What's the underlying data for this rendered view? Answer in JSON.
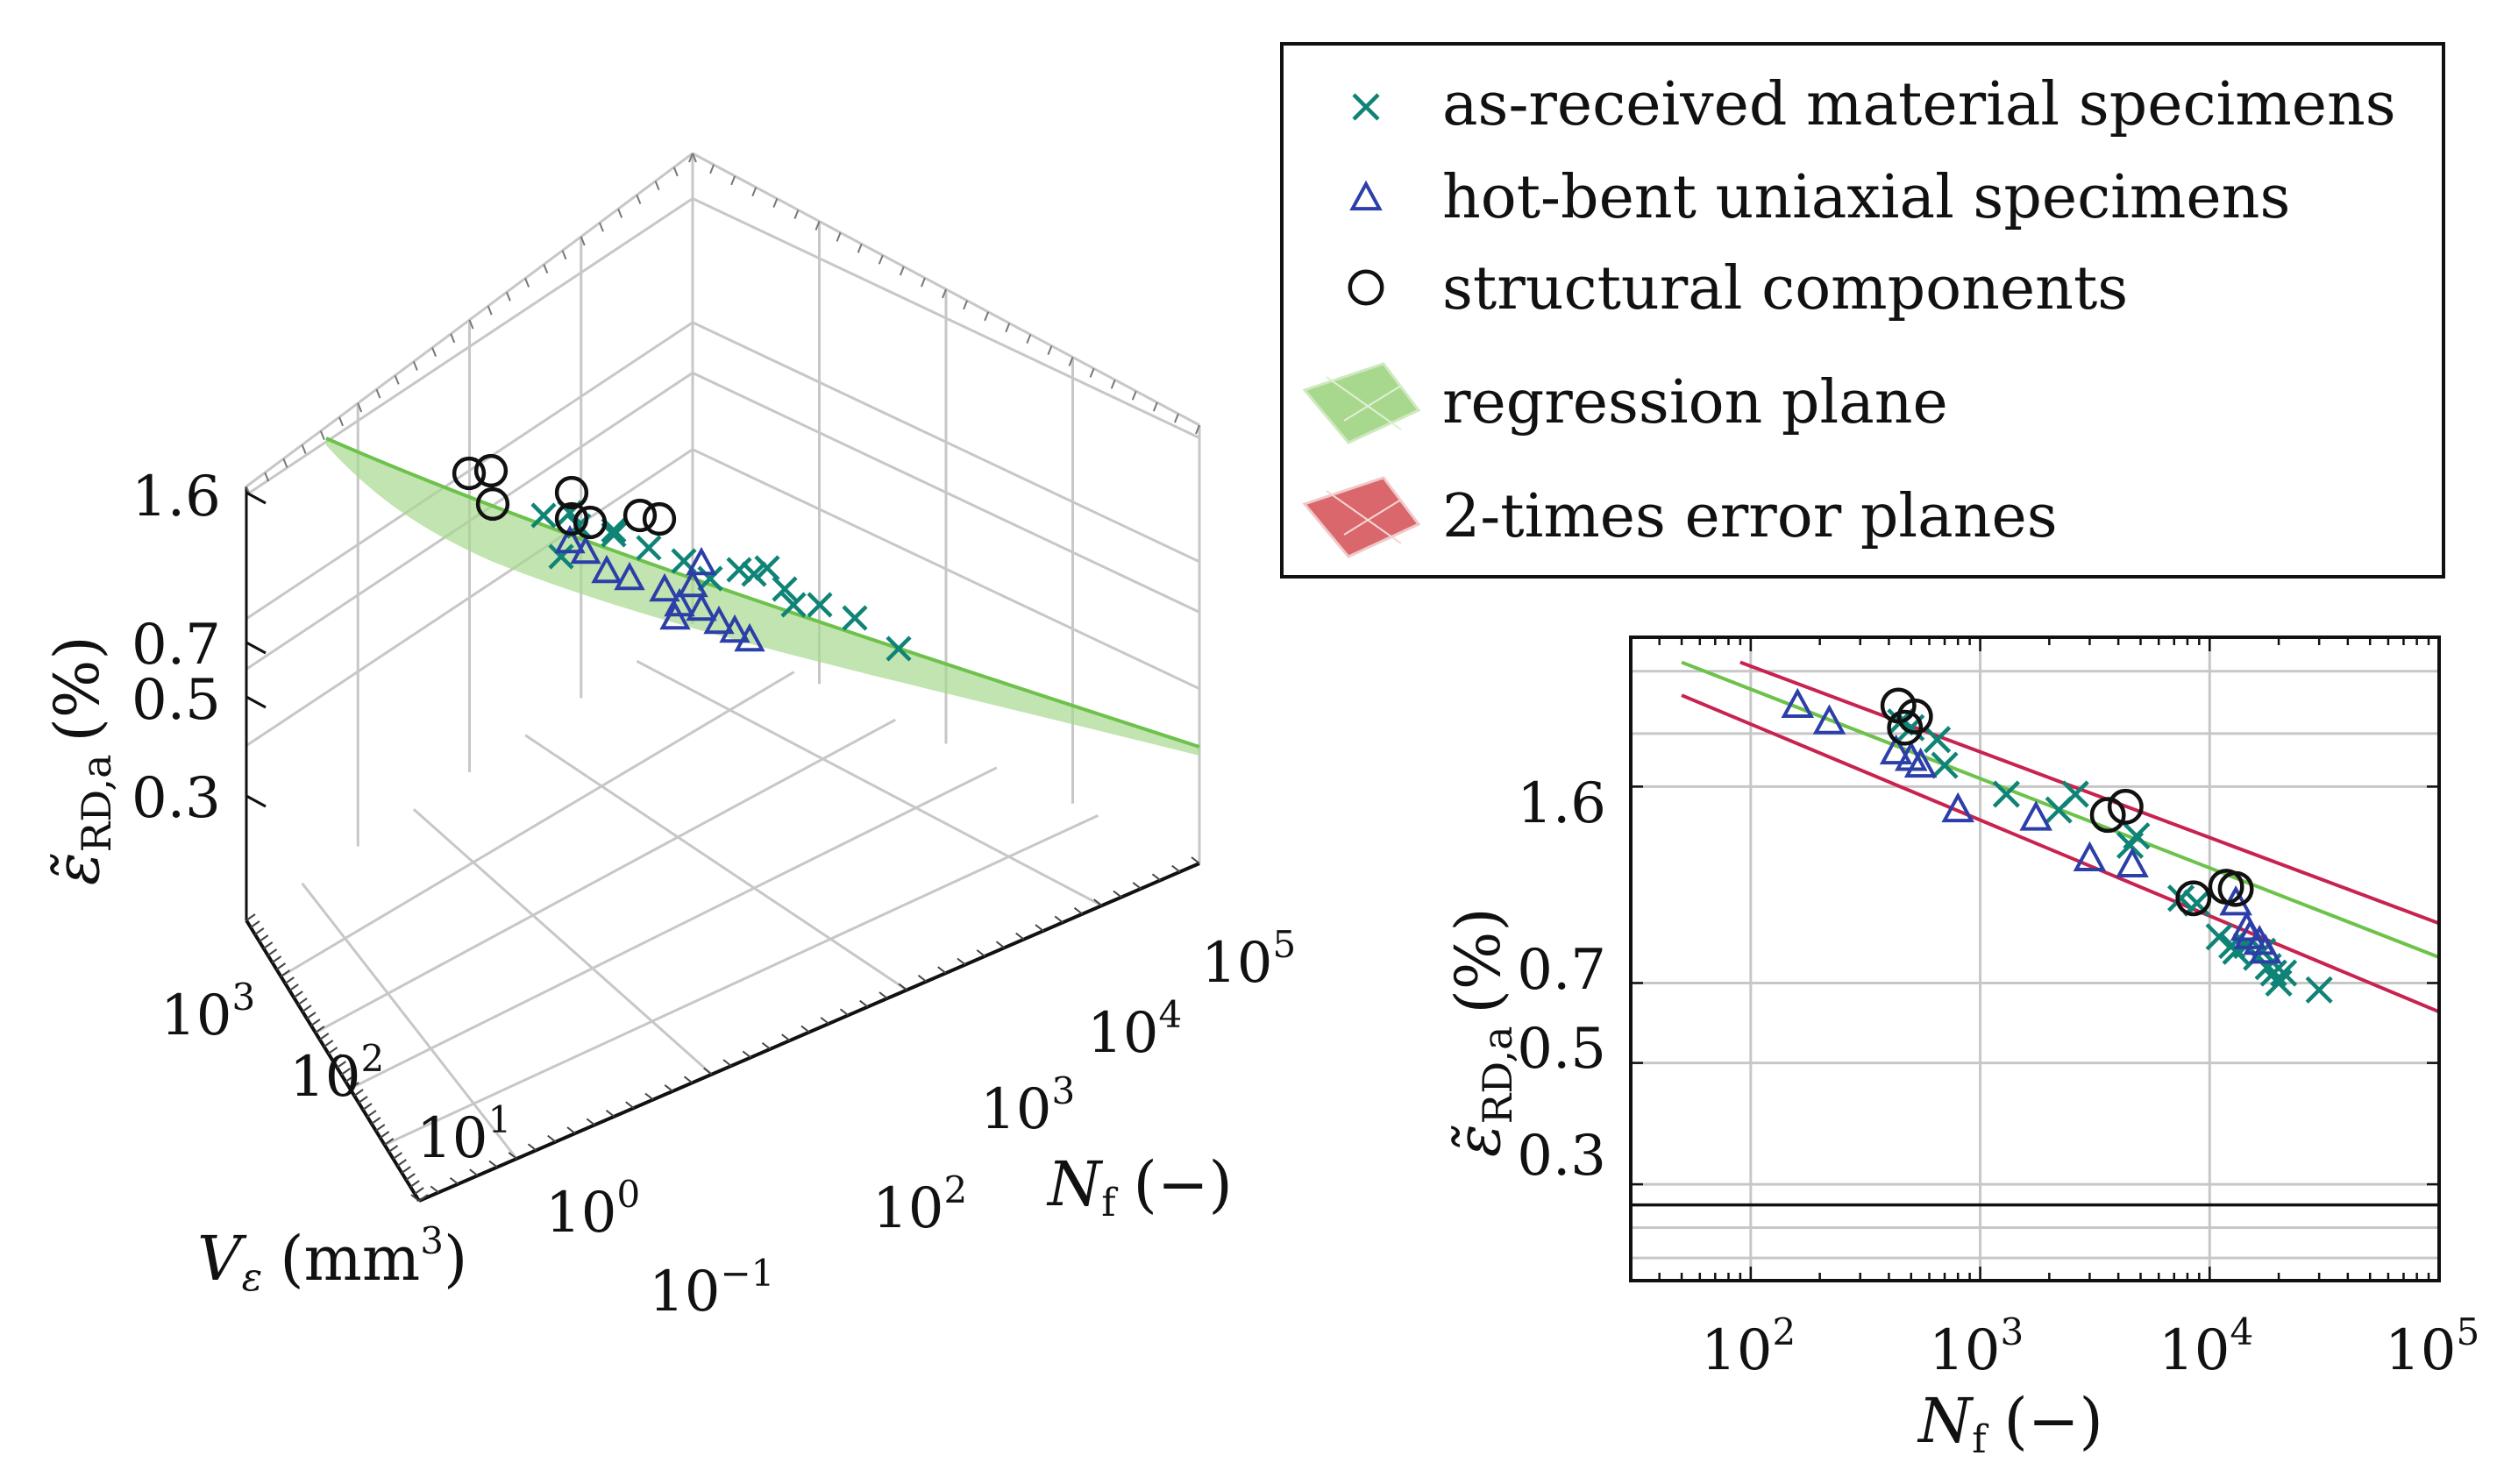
{
  "colors": {
    "teal": "#0f8476",
    "blue": "#2c3fa8",
    "black": "#111111",
    "green": "#6cc24a",
    "greenFill": "#a8d88e",
    "red": "#c8234f",
    "redFill": "#d9676b",
    "grid": "#c7c7c7"
  },
  "legend": {
    "items": [
      {
        "label": "as-received material specimens",
        "marker": "x-mark"
      },
      {
        "label": "hot-bent uniaxial specimens",
        "marker": "triangle"
      },
      {
        "label": "structural components",
        "marker": "circle"
      },
      {
        "label": "regression plane",
        "marker": "green-plane"
      },
      {
        "label": "2-times error planes",
        "marker": "red-plane"
      }
    ]
  },
  "chart_data": [
    {
      "type": "scatter",
      "title": "",
      "projection": "3d",
      "zlabel_main": "ε̃",
      "zlabel_sub": "RD,a",
      "zlabel_unit": "(%)",
      "xlabel_main": "N",
      "xlabel_sub": "f",
      "xlabel_unit": "(−)",
      "ylabel_main": "V",
      "ylabel_sub": "ε",
      "ylabel_unit": "(mm",
      "ylabel_unit_sup": "3",
      "ylabel_unit_end": ")",
      "z_ticks": [
        "1.6",
        "0.7",
        "0.5",
        "0.3"
      ],
      "z_tick_values": [
        1.6,
        0.7,
        0.5,
        0.3
      ],
      "n_ticks": [
        {
          "base": "10",
          "exp": "2",
          "value": 100
        },
        {
          "base": "10",
          "exp": "3",
          "value": 1000
        },
        {
          "base": "10",
          "exp": "4",
          "value": 10000
        },
        {
          "base": "10",
          "exp": "5",
          "value": 100000
        }
      ],
      "v_ticks": [
        {
          "base": "10",
          "exp": "3",
          "value": 1000
        },
        {
          "base": "10",
          "exp": "2",
          "value": 100
        },
        {
          "base": "10",
          "exp": "1",
          "value": 10
        },
        {
          "base": "10",
          "exp": "0",
          "value": 1
        },
        {
          "base": "10",
          "exp": "−1",
          "value": 0.1
        }
      ],
      "nlim": [
        100,
        100000
      ],
      "vlim": [
        0.1,
        1000
      ],
      "zlim": [
        0.2,
        3.0
      ],
      "series": [
        {
          "name": "as-received material specimens",
          "marker": "x",
          "points": [
            [
              1300,
              1100,
              1.2
            ],
            [
              1800,
              900,
              1.1
            ],
            [
              2500,
              700,
              1.2
            ],
            [
              3000,
              500,
              1.0
            ],
            [
              4500,
              300,
              0.95
            ],
            [
              8000,
              100,
              0.9
            ],
            [
              11000,
              60,
              0.75
            ],
            [
              13000,
              40,
              0.75
            ],
            [
              16000,
              25,
              0.7
            ],
            [
              20000,
              15,
              0.65
            ],
            [
              30000,
              8,
              0.6
            ],
            [
              700,
              1000,
              1.5
            ],
            [
              600,
              800,
              1.6
            ],
            [
              800,
              500,
              1.3
            ],
            [
              1600,
              60,
              1.3
            ],
            [
              2500,
              20,
              1.0
            ],
            [
              5000,
              5,
              0.9
            ]
          ]
        },
        {
          "name": "hot-bent uniaxial specimens",
          "marker": "triangle",
          "points": [
            [
              160,
              800,
              1.8
            ],
            [
              230,
              600,
              1.7
            ],
            [
              450,
              500,
              1.6
            ],
            [
              550,
              300,
              1.4
            ],
            [
              800,
              200,
              1.15
            ],
            [
              1800,
              120,
              1.05
            ],
            [
              3000,
              80,
              0.95
            ],
            [
              4500,
              50,
              0.9
            ],
            [
              14000,
              20,
              0.75
            ],
            [
              15000,
              30,
              0.7
            ],
            [
              1200,
              10,
              1.2
            ],
            [
              2500,
              5,
              1.1
            ],
            [
              9000,
              3,
              0.85
            ]
          ]
        },
        {
          "name": "structural components",
          "marker": "circle",
          "points": [
            [
              450,
              1000,
              2.2
            ],
            [
              500,
              700,
              2.0
            ],
            [
              550,
              500,
              2.1
            ],
            [
              3500,
              400,
              1.3
            ],
            [
              4500,
              300,
              1.35
            ],
            [
              8500,
              200,
              0.95
            ],
            [
              11000,
              150,
              1.0
            ],
            [
              13000,
              120,
              1.0
            ]
          ]
        }
      ]
    },
    {
      "type": "scatter",
      "title": "",
      "projection": "2d",
      "xlabel_main": "N",
      "xlabel_sub": "f",
      "xlabel_unit": "(−)",
      "ylabel_main": "ε̃",
      "ylabel_sub": "RD,a",
      "ylabel_unit": "(%)",
      "xscale": "log",
      "yscale": "log",
      "xlim": [
        30,
        100000
      ],
      "ylim": [
        0.2,
        3.0
      ],
      "y_ticks": [
        "1.6",
        "0.7",
        "0.5",
        "0.3"
      ],
      "y_tick_values": [
        1.6,
        0.7,
        0.5,
        0.3
      ],
      "x_ticks": [
        {
          "base": "10",
          "exp": "2",
          "value": 100
        },
        {
          "base": "10",
          "exp": "3",
          "value": 1000
        },
        {
          "base": "10",
          "exp": "4",
          "value": 10000
        },
        {
          "base": "10",
          "exp": "5",
          "value": 100000
        }
      ],
      "regression_line": [
        [
          50,
          2.7
        ],
        [
          100000,
          0.78
        ]
      ],
      "upper_error_line": [
        [
          90,
          2.7
        ],
        [
          100000,
          0.9
        ]
      ],
      "lower_error_line": [
        [
          50,
          2.35
        ],
        [
          100000,
          0.62
        ]
      ],
      "series": [
        {
          "name": "as-received material specimens",
          "marker": "x",
          "points": [
            [
              450,
              2.1
            ],
            [
              500,
              2.05
            ],
            [
              650,
              1.95
            ],
            [
              700,
              1.75
            ],
            [
              1300,
              1.55
            ],
            [
              2200,
              1.45
            ],
            [
              2600,
              1.55
            ],
            [
              4500,
              1.25
            ],
            [
              4800,
              1.3
            ],
            [
              7500,
              1.0
            ],
            [
              8800,
              0.98
            ],
            [
              11000,
              0.85
            ],
            [
              12500,
              0.82
            ],
            [
              13000,
              0.8
            ],
            [
              14500,
              0.82
            ],
            [
              16000,
              0.78
            ],
            [
              17000,
              0.8
            ],
            [
              18000,
              0.75
            ],
            [
              19000,
              0.73
            ],
            [
              20000,
              0.7
            ],
            [
              21000,
              0.73
            ],
            [
              30000,
              0.68
            ]
          ]
        },
        {
          "name": "hot-bent uniaxial specimens",
          "marker": "triangle",
          "points": [
            [
              160,
              2.25
            ],
            [
              220,
              2.1
            ],
            [
              430,
              1.85
            ],
            [
              500,
              1.8
            ],
            [
              550,
              1.75
            ],
            [
              800,
              1.45
            ],
            [
              1750,
              1.4
            ],
            [
              3000,
              1.18
            ],
            [
              4600,
              1.15
            ],
            [
              13000,
              0.98
            ],
            [
              14500,
              0.88
            ],
            [
              15000,
              0.85
            ],
            [
              16500,
              0.83
            ],
            [
              17500,
              0.8
            ]
          ]
        },
        {
          "name": "structural components",
          "marker": "circle",
          "points": [
            [
              440,
              2.25
            ],
            [
              520,
              2.15
            ],
            [
              470,
              2.05
            ],
            [
              3600,
              1.42
            ],
            [
              4300,
              1.47
            ],
            [
              8500,
              1.0
            ],
            [
              11800,
              1.05
            ],
            [
              13000,
              1.04
            ]
          ]
        }
      ]
    }
  ]
}
